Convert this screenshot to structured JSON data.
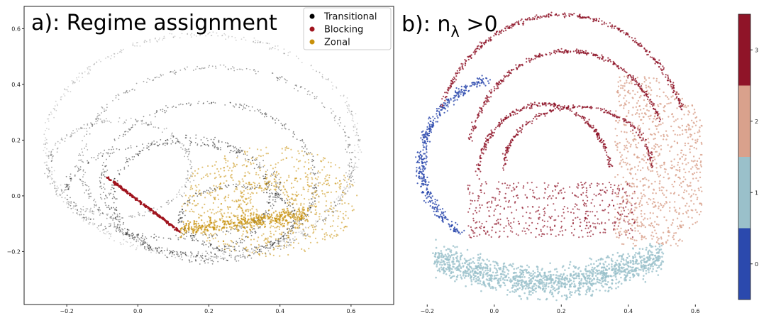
{
  "chart_data": [
    {
      "type": "scatter",
      "title": "a): Regime assignment",
      "xlabel": "",
      "ylabel": "",
      "xlim": [
        -0.32,
        0.72
      ],
      "ylim": [
        -0.39,
        0.68
      ],
      "xticks": [
        -0.2,
        0.0,
        0.2,
        0.4,
        0.6
      ],
      "xtick_labels": [
        "−0.2",
        "0.0",
        "0.2",
        "0.4",
        "0.6"
      ],
      "yticks": [
        -0.2,
        0.0,
        0.2,
        0.4,
        0.6
      ],
      "ytick_labels": [
        "−0.2",
        "0.0",
        "0.2",
        "0.4",
        "0.6"
      ],
      "grid": false,
      "legend_position": "top-right",
      "series": [
        {
          "name": "Transitional",
          "color": "#000000",
          "approx_region": "all loops of attractor",
          "x_range": [
            -0.3,
            0.65
          ],
          "y_range": [
            -0.35,
            0.65
          ]
        },
        {
          "name": "Blocking",
          "color": "#a0141e",
          "approx_region": "thin band",
          "x_range": [
            -0.1,
            0.12
          ],
          "y_range": [
            -0.15,
            0.08
          ]
        },
        {
          "name": "Zonal",
          "color": "#c8900a",
          "approx_region": "right lobe",
          "x_range": [
            0.12,
            0.62
          ],
          "y_range": [
            -0.25,
            0.22
          ]
        }
      ]
    },
    {
      "type": "scatter",
      "title": "b): n",
      "title_subscript": "λ",
      "title_suffix": " >0",
      "xlabel": "",
      "ylabel": "",
      "xlim": [
        -0.3,
        0.72
      ],
      "ylim": [
        -0.39,
        0.68
      ],
      "xticks": [
        -0.2,
        0.0,
        0.2,
        0.4,
        0.6
      ],
      "xtick_labels": [
        "−0.2",
        "0.0",
        "0.2",
        "0.4",
        "0.6"
      ],
      "grid": false,
      "colorbar": {
        "range": [
          0,
          4
        ],
        "ticks": [
          0.5,
          1.5,
          2.5,
          3.5
        ],
        "tick_labels": [
          "0",
          "1",
          "2",
          "3"
        ],
        "colors": [
          "#2b49ad",
          "#9ac0ca",
          "#d9a18c",
          "#8f1428"
        ]
      },
      "series": [
        {
          "level": 0,
          "color": "#2b49ad",
          "approx_region": "left outer arcs",
          "x_range": [
            -0.25,
            -0.05
          ],
          "y_range": [
            -0.1,
            0.45
          ]
        },
        {
          "level": 1,
          "color": "#9ac0ca",
          "approx_region": "bottom band",
          "x_range": [
            -0.2,
            0.5
          ],
          "y_range": [
            -0.36,
            0.02
          ]
        },
        {
          "level": 2,
          "color": "#d9a18c",
          "approx_region": "right lobe",
          "x_range": [
            0.35,
            0.62
          ],
          "y_range": [
            -0.2,
            0.45
          ]
        },
        {
          "level": 3,
          "color": "#8f1428",
          "approx_region": "upper arcs and center",
          "x_range": [
            -0.15,
            0.45
          ],
          "y_range": [
            -0.2,
            0.65
          ]
        }
      ]
    }
  ],
  "legend": [
    {
      "label": "Transitional",
      "color": "#000000"
    },
    {
      "label": "Blocking",
      "color": "#a0141e"
    },
    {
      "label": "Zonal",
      "color": "#c8900a"
    }
  ]
}
